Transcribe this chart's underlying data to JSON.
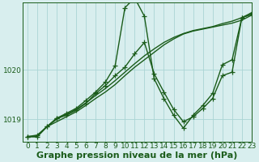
{
  "bg_color": "#d8eeee",
  "line_color": "#1a5c1a",
  "grid_color": "#aad4d4",
  "xlabel": "Graphe pression niveau de la mer (hPa)",
  "ylabel_ticks": [
    1019,
    1020
  ],
  "xlim": [
    -0.5,
    23
  ],
  "ylim": [
    1018.55,
    1021.35
  ],
  "series": [
    {
      "x": [
        0,
        1,
        2,
        3,
        4,
        5,
        6,
        7,
        8,
        9,
        10,
        11,
        12,
        13,
        14,
        15,
        16,
        17,
        18,
        19,
        20,
        21,
        22,
        23
      ],
      "y": [
        1018.65,
        1018.65,
        1018.85,
        1018.95,
        1019.05,
        1019.15,
        1019.28,
        1019.42,
        1019.55,
        1019.7,
        1019.88,
        1020.05,
        1020.2,
        1020.35,
        1020.5,
        1020.62,
        1020.72,
        1020.78,
        1020.82,
        1020.86,
        1020.9,
        1020.94,
        1021.0,
        1021.1
      ],
      "marker": false
    },
    {
      "x": [
        0,
        1,
        2,
        3,
        4,
        5,
        6,
        7,
        8,
        9,
        10,
        11,
        12,
        13,
        14,
        15,
        16,
        17,
        18,
        19,
        20,
        21,
        22,
        23
      ],
      "y": [
        1018.65,
        1018.65,
        1018.85,
        1019.0,
        1019.1,
        1019.2,
        1019.33,
        1019.48,
        1019.62,
        1019.78,
        1019.95,
        1020.12,
        1020.28,
        1020.42,
        1020.55,
        1020.65,
        1020.73,
        1020.79,
        1020.83,
        1020.87,
        1020.93,
        1020.98,
        1021.05,
        1021.12
      ],
      "marker": false
    },
    {
      "x": [
        0,
        1,
        2,
        3,
        4,
        5,
        6,
        7,
        8,
        9,
        10,
        11,
        12,
        13,
        14,
        15,
        16,
        17,
        18,
        19,
        20,
        21,
        22,
        23
      ],
      "y": [
        1018.65,
        1018.65,
        1018.85,
        1019.02,
        1019.08,
        1019.18,
        1019.32,
        1019.52,
        1019.68,
        1019.88,
        1020.05,
        1020.32,
        1020.55,
        1019.92,
        1019.55,
        1019.2,
        1018.95,
        1019.05,
        1019.22,
        1019.42,
        1019.88,
        1019.95,
        1021.05,
        1021.12
      ],
      "marker": true
    },
    {
      "x": [
        0,
        1,
        2,
        3,
        4,
        5,
        6,
        7,
        8,
        9,
        10,
        11,
        12,
        13,
        14,
        15,
        16,
        17,
        18,
        19,
        20,
        21,
        22,
        23
      ],
      "y": [
        1018.65,
        1018.68,
        1018.85,
        1019.02,
        1019.12,
        1019.22,
        1019.38,
        1019.55,
        1019.75,
        1020.08,
        1021.25,
        1021.45,
        1021.08,
        1019.82,
        1019.42,
        1019.08,
        1018.82,
        1019.08,
        1019.28,
        1019.52,
        1020.1,
        1020.2,
        1021.05,
        1021.15
      ],
      "marker": true
    }
  ],
  "marker_style": "+",
  "marker_size": 4,
  "linewidth": 1.0,
  "tick_fontsize": 6.5,
  "xlabel_fontsize": 8,
  "grid_linewidth": 0.6
}
